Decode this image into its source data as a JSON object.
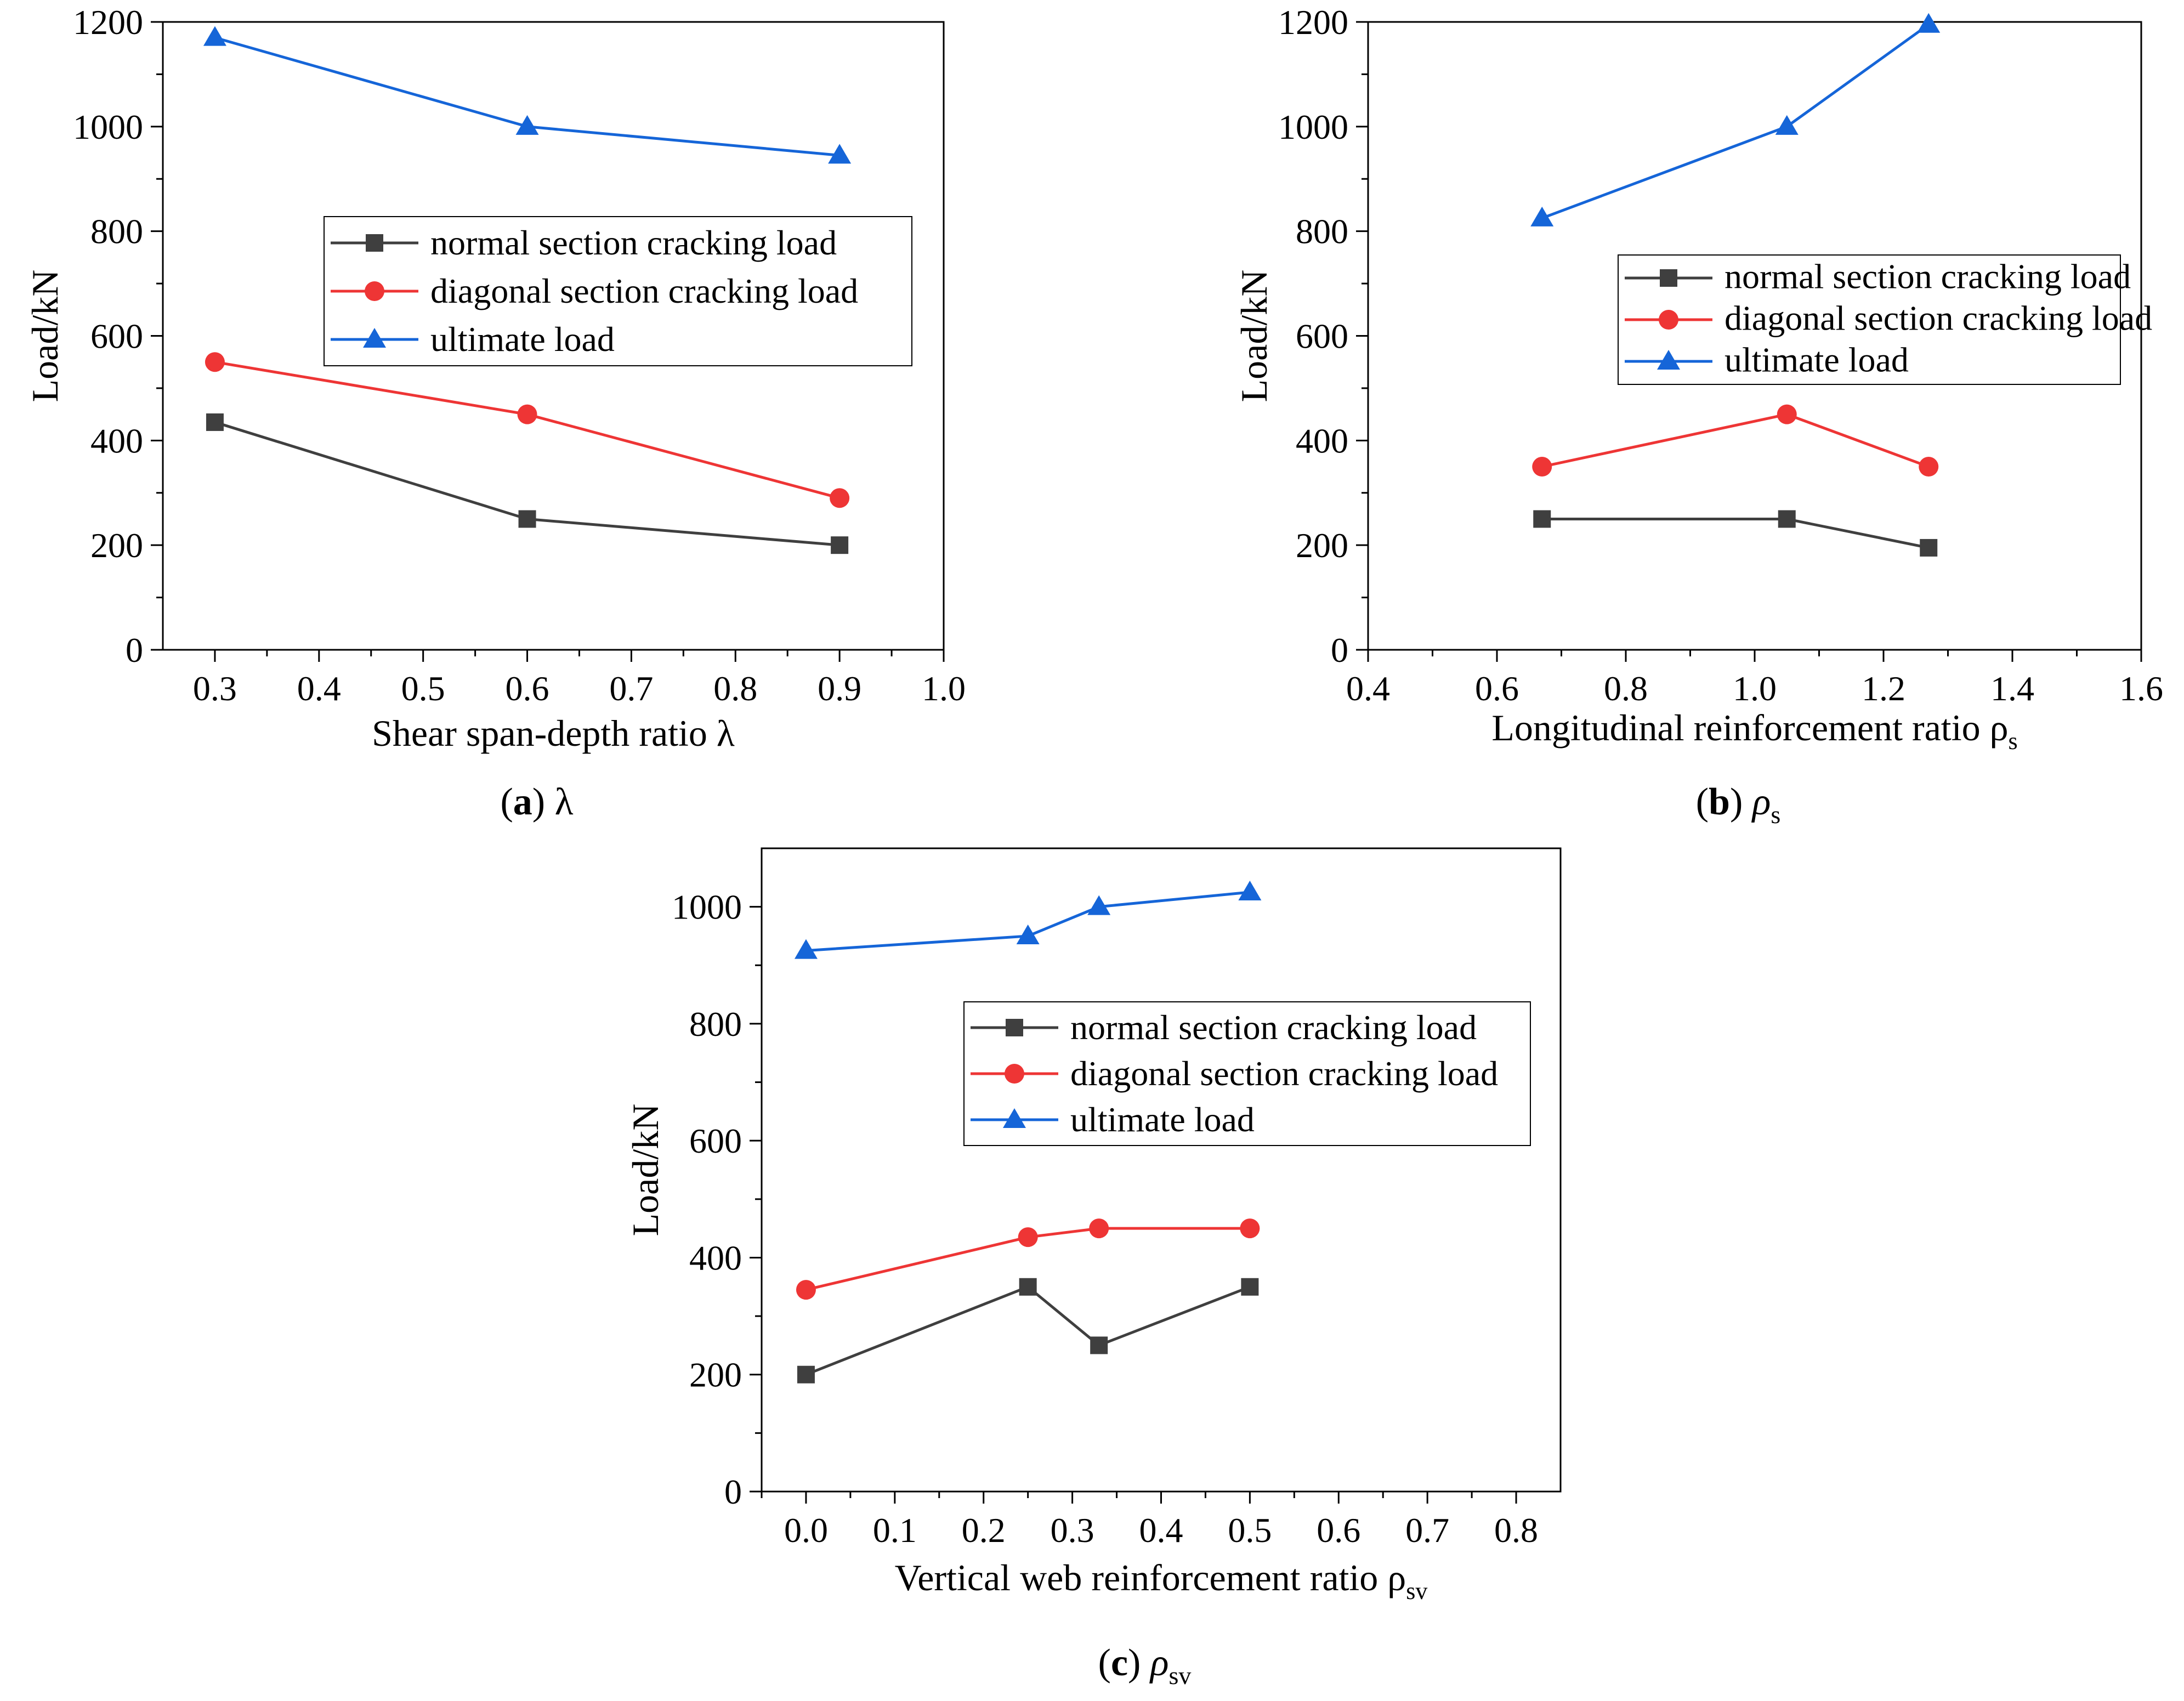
{
  "colors": {
    "normal": "#3f3f3f",
    "diagonal": "#ee3535",
    "ultimate": "#1565d8",
    "axis": "#000000"
  },
  "chart_data": [
    {
      "id": "a",
      "type": "line",
      "xlabel": "Shear span-depth ratio  λ",
      "ylabel": "Load/kN",
      "xlim": [
        0.25,
        1.0
      ],
      "ylim": [
        0,
        1200
      ],
      "xticks": [
        0.3,
        0.4,
        0.5,
        0.6,
        0.7,
        0.8,
        0.9,
        1.0
      ],
      "xtick_labels": [
        "0.3",
        "0.4",
        "0.5",
        "0.6",
        "0.7",
        "0.8",
        "0.9",
        "1.0"
      ],
      "yticks": [
        0,
        200,
        400,
        600,
        800,
        1000,
        1200
      ],
      "ytick_labels": [
        "0",
        "200",
        "400",
        "600",
        "800",
        "1000",
        "1200"
      ],
      "legend_position": "center-right",
      "caption_letter": "a",
      "caption_symbol": "λ",
      "series": [
        {
          "key": "normal",
          "name": "normal section cracking load",
          "marker": "square",
          "x": [
            0.3,
            0.6,
            0.9
          ],
          "y": [
            435,
            250,
            200
          ]
        },
        {
          "key": "diagonal",
          "name": "diagonal section cracking load",
          "marker": "circle",
          "x": [
            0.3,
            0.6,
            0.9
          ],
          "y": [
            550,
            450,
            290
          ]
        },
        {
          "key": "ultimate",
          "name": "ultimate load",
          "marker": "triangle",
          "x": [
            0.3,
            0.6,
            0.9
          ],
          "y": [
            1170,
            1000,
            945
          ]
        }
      ]
    },
    {
      "id": "b",
      "type": "line",
      "xlabel": "Longitudinal reinforcement ratio ρ",
      "xlabel_sub": "s",
      "ylabel": "Load/kN",
      "xlim": [
        0.4,
        1.6
      ],
      "ylim": [
        0,
        1200
      ],
      "xticks": [
        0.4,
        0.6,
        0.8,
        1.0,
        1.2,
        1.4,
        1.6
      ],
      "xtick_labels": [
        "0.4",
        "0.6",
        "0.8",
        "1.0",
        "1.2",
        "1.4",
        "1.6"
      ],
      "yticks": [
        0,
        200,
        400,
        600,
        800,
        1000,
        1200
      ],
      "ytick_labels": [
        "0",
        "200",
        "400",
        "600",
        "800",
        "1000",
        "1200"
      ],
      "legend_position": "center-right",
      "caption_letter": "b",
      "caption_symbol": "ρ",
      "caption_sub": "s",
      "series": [
        {
          "key": "normal",
          "name": "normal section cracking load",
          "marker": "square",
          "x": [
            0.67,
            1.05,
            1.27
          ],
          "y": [
            250,
            250,
            195
          ]
        },
        {
          "key": "diagonal",
          "name": "diagonal section cracking load",
          "marker": "circle",
          "x": [
            0.67,
            1.05,
            1.27
          ],
          "y": [
            350,
            450,
            350
          ]
        },
        {
          "key": "ultimate",
          "name": "ultimate load",
          "marker": "triangle",
          "x": [
            0.67,
            1.05,
            1.27
          ],
          "y": [
            825,
            1000,
            1195
          ]
        }
      ]
    },
    {
      "id": "c",
      "type": "line",
      "xlabel": "Vertical web reinforcement ratio ρ",
      "xlabel_sub": "sv",
      "ylabel": "Load/kN",
      "xlim": [
        -0.05,
        0.85
      ],
      "ylim": [
        0,
        1100
      ],
      "xticks": [
        0.0,
        0.1,
        0.2,
        0.3,
        0.4,
        0.5,
        0.6,
        0.7,
        0.8
      ],
      "xtick_labels": [
        "0.0",
        "0.1",
        "0.2",
        "0.3",
        "0.4",
        "0.5",
        "0.6",
        "0.7",
        "0.8"
      ],
      "yticks": [
        0,
        200,
        400,
        600,
        800,
        1000
      ],
      "ytick_labels": [
        "0",
        "200",
        "400",
        "600",
        "800",
        "1000"
      ],
      "legend_position": "center-right",
      "caption_letter": "c",
      "caption_symbol": "ρ",
      "caption_sub": "sv",
      "series": [
        {
          "key": "normal",
          "name": "normal section cracking load",
          "marker": "square",
          "x": [
            0.0,
            0.25,
            0.33,
            0.5
          ],
          "y": [
            200,
            350,
            250,
            350
          ]
        },
        {
          "key": "diagonal",
          "name": "diagonal section cracking load",
          "marker": "circle",
          "x": [
            0.0,
            0.25,
            0.33,
            0.5
          ],
          "y": [
            345,
            435,
            450,
            450
          ]
        },
        {
          "key": "ultimate",
          "name": "ultimate load",
          "marker": "triangle",
          "x": [
            0.0,
            0.25,
            0.33,
            0.5
          ],
          "y": [
            925,
            950,
            1000,
            1025
          ]
        }
      ]
    }
  ]
}
